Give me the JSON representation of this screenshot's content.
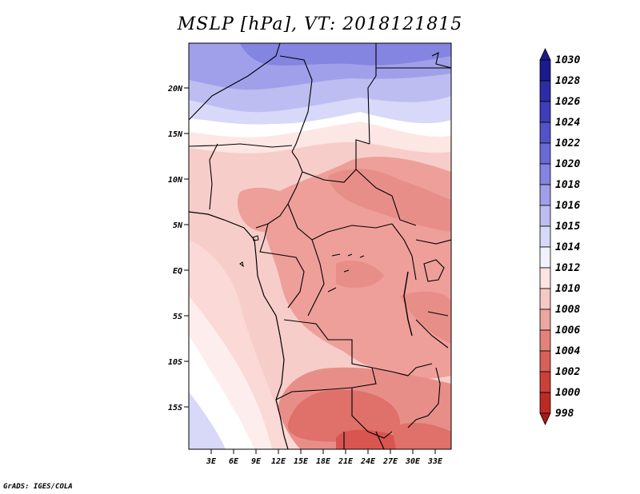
{
  "title": "MSLP [hPa], VT: 2018121815",
  "credit": "GrADS: IGES/COLA",
  "colors": {
    "very_low": "#c8413a",
    "low": "#e06a66",
    "mid_low": "#e99692",
    "mid": "#f0b3ae",
    "light": "#f7cdc9",
    "neutral": "#fde4e2",
    "white": "#ffffff",
    "light_blue": "#d6d6fa",
    "blue": "#b3b3f2",
    "dark_blue": "#8f8fe8",
    "deeper_blue": "#6d6ddc",
    "deepest_blue": "#4a4ac9"
  },
  "map": {
    "lat_labels": [
      "20N",
      "15N",
      "10N",
      "5N",
      "EQ",
      "5S",
      "10S",
      "15S"
    ],
    "lon_labels": [
      "3E",
      "6E",
      "9E",
      "12E",
      "15E",
      "18E",
      "21E",
      "24E",
      "27E",
      "30E",
      "33E"
    ]
  },
  "colorbar": {
    "levels": [
      "1030",
      "1028",
      "1026",
      "1024",
      "1022",
      "1020",
      "1018",
      "1016",
      "1015",
      "1014",
      "1012",
      "1010",
      "1008",
      "1006",
      "1004",
      "1002",
      "1000",
      "998"
    ],
    "colors": [
      "#1b1b8f",
      "#2c2ca6",
      "#3e3eba",
      "#5252c9",
      "#6a6ad6",
      "#8484e1",
      "#a0a0ea",
      "#bdbdf2",
      "#d8d8f8",
      "#f2f2ff",
      "#fbe4e2",
      "#f6c8c4",
      "#eda6a1",
      "#e3827c",
      "#d8605a",
      "#cc403a",
      "#bd2a24",
      "#a51c17"
    ]
  }
}
